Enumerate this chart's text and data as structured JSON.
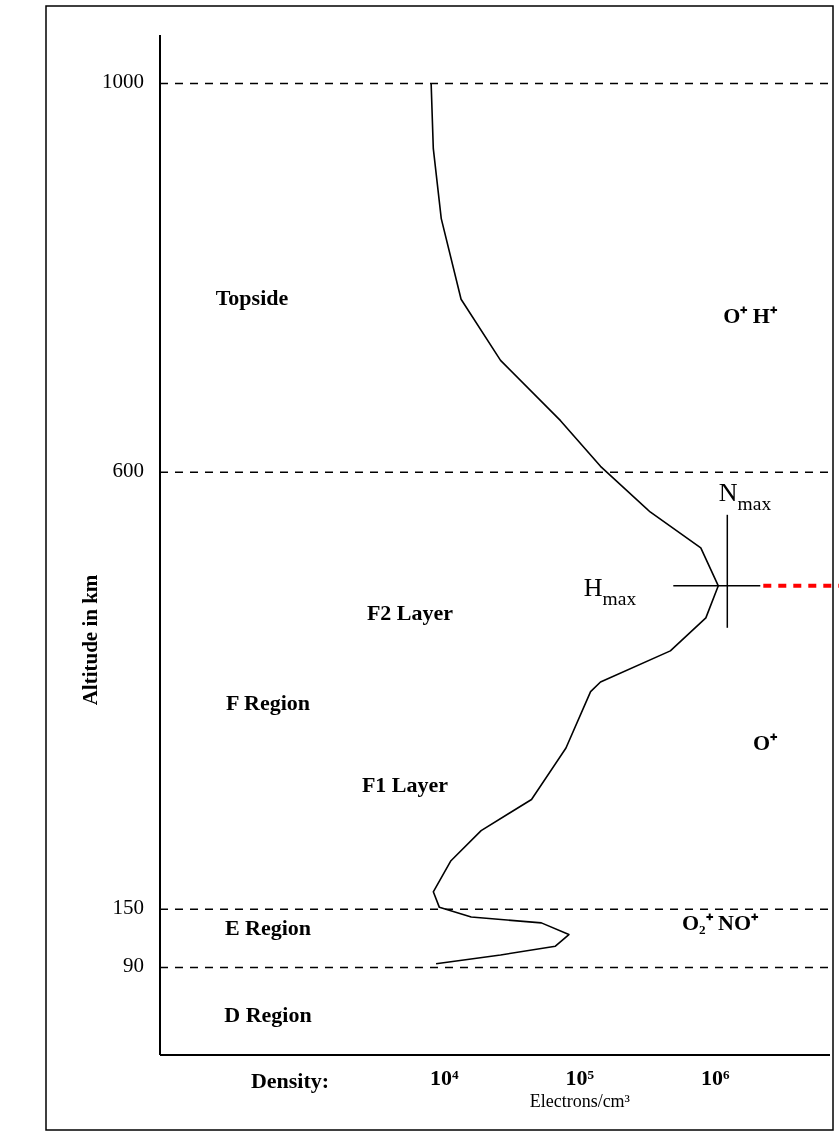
{
  "chart_data": {
    "type": "line",
    "xlabel": "Electrons/cm³",
    "ylabel": "Altitude in km",
    "log": "x",
    "xlim": [
      80,
      7000000
    ],
    "xticks": [
      {
        "value": 10000,
        "label": "10⁴"
      },
      {
        "value": 100000,
        "label": "10⁵"
      },
      {
        "value": 1000000,
        "label": "10⁶"
      }
    ],
    "ylim": [
      0,
      1050
    ],
    "yticks": [
      90,
      150,
      600,
      1000
    ],
    "series": [
      {
        "color": "#000000",
        "line_style": "solid",
        "x": [
          8000,
          8300,
          9500,
          13300,
          26000,
          72000,
          142000,
          330000,
          780000,
          1050000,
          850000,
          465000,
          142000,
          120000,
          79000,
          44000,
          18700,
          11200,
          8300,
          9200,
          15800,
          52000,
          83000,
          66000,
          26000,
          8700
        ],
        "values": [
          1000,
          933,
          861,
          778,
          715,
          653,
          606,
          559,
          522,
          483,
          450,
          416,
          384,
          374,
          316,
          263,
          231,
          200,
          168,
          152,
          142,
          136,
          124,
          112,
          103,
          94
        ]
      }
    ],
    "marker": "none",
    "grid": false,
    "ref_lines": [
      {
        "axis": "y",
        "value": 1000,
        "line_style": "dashed",
        "color": "#000000"
      },
      {
        "axis": "y",
        "value": 600,
        "line_style": "dashed",
        "color": "#000000"
      },
      {
        "axis": "y",
        "value": 150,
        "line_style": "dashed",
        "color": "#000000"
      },
      {
        "axis": "y",
        "value": 90,
        "line_style": "dashed",
        "color": "#000000"
      },
      {
        "axis": "y",
        "value": 483,
        "line_style": "dashed",
        "color": "#ff0000"
      }
    ],
    "annotations": [
      "Topside",
      "O⁺ H⁺",
      "N$_{max}$",
      "H$_{max}$",
      "F2 Layer",
      "F Region",
      "O⁺",
      "F1 Layer",
      "E Region",
      "O₂⁺ NO⁺",
      "D Region",
      "Density:"
    ]
  }
}
